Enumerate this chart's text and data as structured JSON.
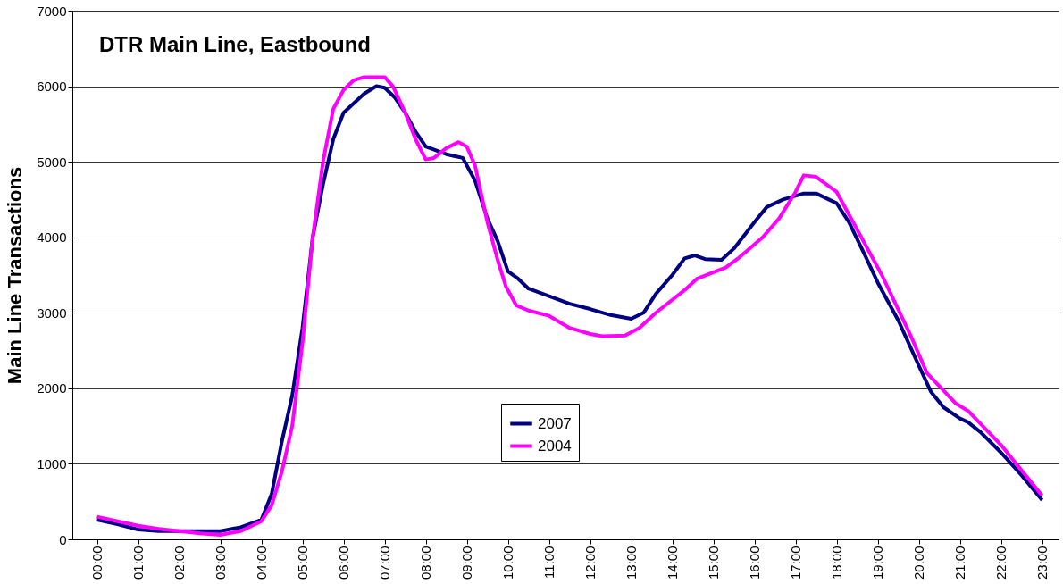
{
  "chart_data": {
    "type": "line",
    "title": "DTR Main Line, Eastbound",
    "ylabel": "Main Line Transactions",
    "xlim": [
      -0.6,
      23.4
    ],
    "ylim": [
      0,
      7000
    ],
    "yticks": [
      0,
      1000,
      2000,
      3000,
      4000,
      5000,
      6000,
      7000
    ],
    "xticks": [
      {
        "value": 0,
        "label": "00:00"
      },
      {
        "value": 1,
        "label": "01:00"
      },
      {
        "value": 2,
        "label": "02:00"
      },
      {
        "value": 3,
        "label": "03:00"
      },
      {
        "value": 4,
        "label": "04:00"
      },
      {
        "value": 5,
        "label": "05:00"
      },
      {
        "value": 6,
        "label": "06:00"
      },
      {
        "value": 7,
        "label": "07:00"
      },
      {
        "value": 8,
        "label": "08:00"
      },
      {
        "value": 9,
        "label": "09:00"
      },
      {
        "value": 10,
        "label": "10:00"
      },
      {
        "value": 11,
        "label": "11:00"
      },
      {
        "value": 12,
        "label": "12:00"
      },
      {
        "value": 13,
        "label": "13:00"
      },
      {
        "value": 14,
        "label": "14:00"
      },
      {
        "value": 15,
        "label": "15:00"
      },
      {
        "value": 16,
        "label": "16:00"
      },
      {
        "value": 17,
        "label": "17:00"
      },
      {
        "value": 18,
        "label": "18:00"
      },
      {
        "value": 19,
        "label": "19:00"
      },
      {
        "value": 20,
        "label": "20:00"
      },
      {
        "value": 21,
        "label": "21:00"
      },
      {
        "value": 22,
        "label": "22:00"
      },
      {
        "value": 23,
        "label": "23:00"
      }
    ],
    "grid": "y",
    "legend": "bottom",
    "marker": "none",
    "line_style": "solid",
    "series": [
      {
        "name": "2007",
        "color": "#000080",
        "x": [
          0,
          0.5,
          1,
          1.5,
          2,
          2.5,
          3,
          3.5,
          4,
          4.25,
          4.5,
          4.75,
          5,
          5.25,
          5.5,
          5.75,
          6,
          6.5,
          6.8,
          7,
          7.25,
          7.5,
          7.75,
          8,
          8.5,
          8.9,
          9.2,
          9.5,
          9.75,
          10,
          10.25,
          10.5,
          11,
          11.5,
          12,
          12.5,
          13,
          13.3,
          13.6,
          14,
          14.3,
          14.55,
          14.8,
          15.2,
          15.5,
          16,
          16.3,
          16.7,
          17.2,
          17.5,
          18,
          18.3,
          18.7,
          19,
          19.5,
          20,
          20.3,
          20.6,
          21,
          21.2,
          21.5,
          22,
          22.5,
          23
        ],
        "values": [
          260,
          200,
          130,
          110,
          110,
          110,
          110,
          160,
          260,
          600,
          1300,
          1900,
          2800,
          4000,
          4700,
          5300,
          5650,
          5900,
          6000,
          5980,
          5850,
          5650,
          5400,
          5200,
          5100,
          5050,
          4750,
          4250,
          3950,
          3550,
          3450,
          3320,
          3220,
          3120,
          3050,
          2970,
          2920,
          3000,
          3250,
          3500,
          3720,
          3760,
          3710,
          3700,
          3850,
          4200,
          4400,
          4500,
          4580,
          4580,
          4450,
          4200,
          3750,
          3400,
          2900,
          2300,
          1950,
          1750,
          1600,
          1550,
          1420,
          1150,
          850,
          520
        ]
      },
      {
        "name": "2004",
        "color": "#ff00ff",
        "x": [
          0,
          0.5,
          1,
          1.5,
          2,
          2.5,
          3,
          3.5,
          4,
          4.25,
          4.5,
          4.75,
          5,
          5.25,
          5.5,
          5.75,
          6,
          6.25,
          6.5,
          7,
          7.2,
          7.5,
          7.75,
          8,
          8.2,
          8.5,
          8.8,
          9,
          9.2,
          9.5,
          9.75,
          9.95,
          10.2,
          10.5,
          11,
          11.5,
          12,
          12.3,
          12.85,
          13.2,
          13.6,
          14.3,
          14.6,
          15.3,
          15.6,
          16.2,
          16.6,
          17,
          17.2,
          17.5,
          18,
          18.4,
          19.1,
          19.8,
          20.2,
          20.9,
          21.2,
          22,
          23
        ],
        "values": [
          300,
          240,
          180,
          140,
          110,
          80,
          60,
          110,
          240,
          450,
          900,
          1500,
          2600,
          4000,
          5000,
          5700,
          5950,
          6080,
          6120,
          6120,
          6000,
          5650,
          5300,
          5030,
          5050,
          5180,
          5260,
          5200,
          4950,
          4200,
          3700,
          3350,
          3100,
          3030,
          2960,
          2800,
          2720,
          2690,
          2700,
          2800,
          3000,
          3300,
          3450,
          3600,
          3720,
          4000,
          4250,
          4600,
          4820,
          4800,
          4600,
          4200,
          3500,
          2700,
          2200,
          1800,
          1700,
          1250,
          580
        ]
      }
    ]
  }
}
